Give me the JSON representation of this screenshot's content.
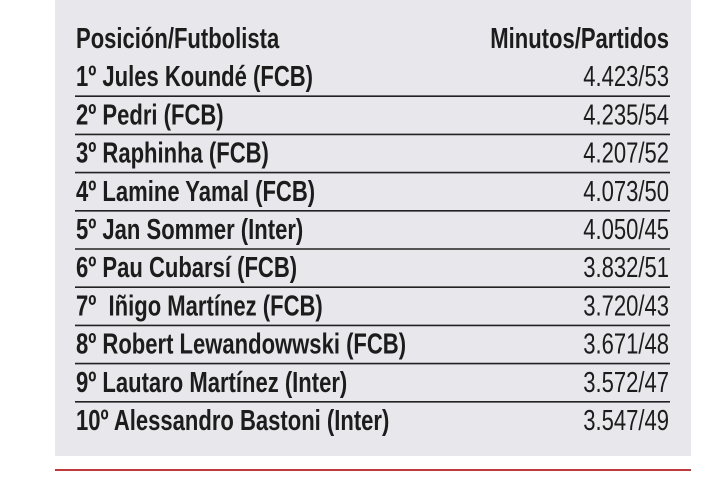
{
  "table": {
    "header": [
      "Posición/Futbolista",
      "Minutos/Partidos"
    ],
    "rows": [
      [
        "1º Jules Koundé (FCB)",
        "4.423/53"
      ],
      [
        "2º Pedri (FCB)",
        "4.235/54"
      ],
      [
        "3º Raphinha (FCB)",
        "4.207/52"
      ],
      [
        "4º Lamine Yamal (FCB)",
        "4.073/50"
      ],
      [
        "5º Jan Sommer (Inter)",
        "4.050/45"
      ],
      [
        "6º Pau Cubarsí (FCB)",
        "3.832/51"
      ],
      [
        "7º  Iñigo Martínez (FCB)",
        "3.720/43"
      ],
      [
        "8º Robert Lewandowwski (FCB)",
        "3.671/48"
      ],
      [
        "9º Lautaro Martínez (Inter)",
        "3.572/47"
      ],
      [
        "10º Alessandro Bastoni (Inter)",
        "3.547/49"
      ]
    ]
  }
}
